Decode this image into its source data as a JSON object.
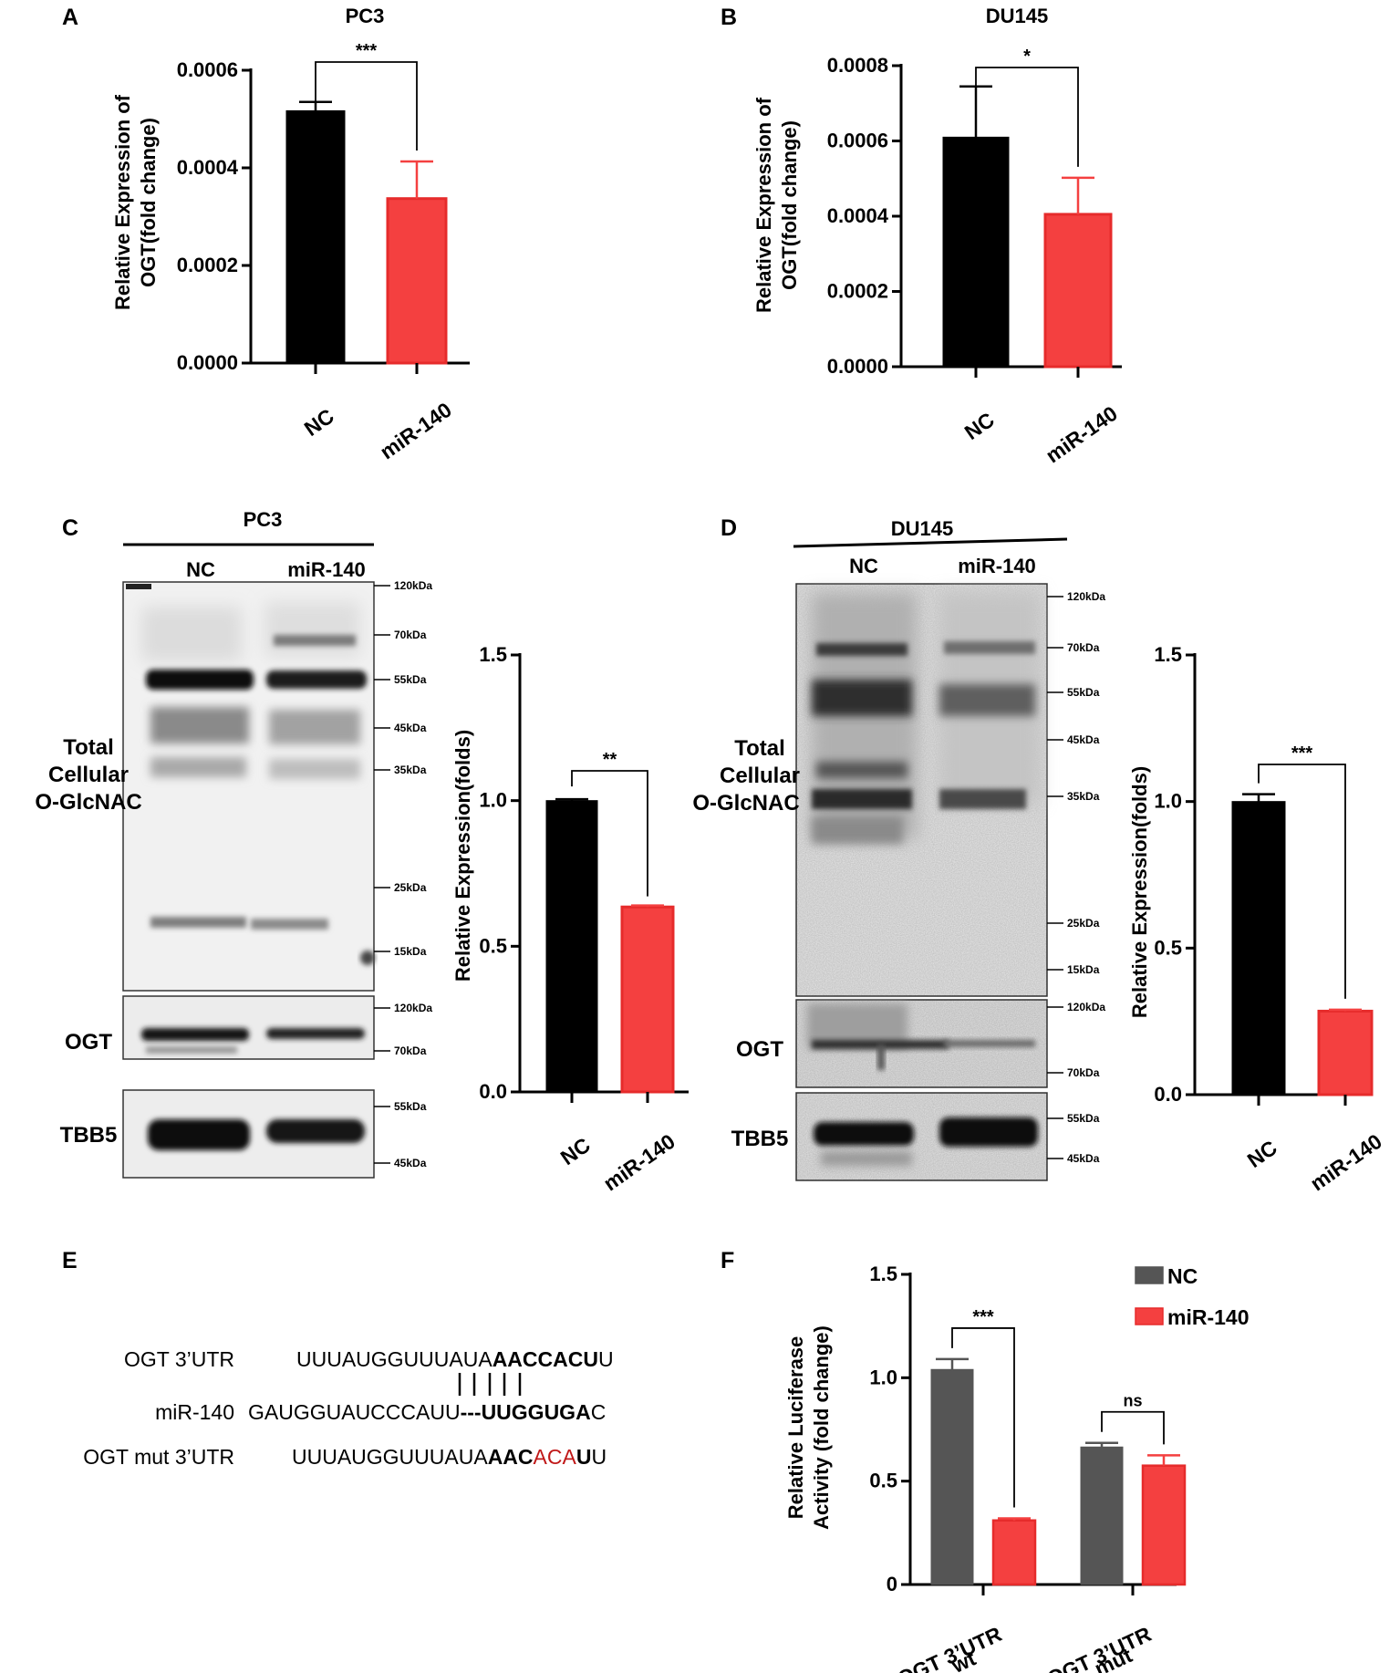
{
  "colors": {
    "nc": "#000000",
    "mir": "#f44040",
    "mir_stroke": "#e62b2b",
    "nc_dark": "#555555",
    "mut": "#c01818"
  },
  "panel_letters": [
    "A",
    "B",
    "C",
    "D",
    "E",
    "F"
  ],
  "chart_data": [
    {
      "panel": "A",
      "type": "bar",
      "title": "PC3",
      "ylabel_line1": "Relative Expression of",
      "ylabel_line2": "OGT(fold change)",
      "categories": [
        "NC",
        "miR-140"
      ],
      "values": [
        0.000517,
        0.000337
      ],
      "errors": [
        1.8e-05,
        7.6e-05
      ],
      "yticks": [
        "0.0000",
        "0.0002",
        "0.0004",
        "0.0006"
      ],
      "ylim": [
        0,
        0.0006
      ],
      "significance": "***"
    },
    {
      "panel": "B",
      "type": "bar",
      "title": "DU145",
      "ylabel_line1": "Relative Expression of",
      "ylabel_line2": "OGT(fold change)",
      "categories": [
        "NC",
        "miR-140"
      ],
      "values": [
        0.00061,
        0.000405
      ],
      "errors": [
        0.000135,
        9.7e-05
      ],
      "yticks": [
        "0.0000",
        "0.0002",
        "0.0004",
        "0.0006",
        "0.0008"
      ],
      "ylim": [
        0,
        0.0008
      ],
      "significance": "*"
    },
    {
      "panel": "C",
      "type": "bar",
      "ylabel": "Relative Expression(folds)",
      "categories": [
        "NC",
        "miR-140"
      ],
      "values": [
        1.0,
        0.635
      ],
      "errors": [
        0.005,
        0.005
      ],
      "yticks": [
        "0.0",
        "0.5",
        "1.0",
        "1.5"
      ],
      "ylim": [
        0,
        1.5
      ],
      "significance": "**"
    },
    {
      "panel": "D",
      "type": "bar",
      "ylabel": "Relative Expression(folds)",
      "categories": [
        "NC",
        "miR-140"
      ],
      "values": [
        1.0,
        0.285
      ],
      "errors": [
        0.025,
        0.005
      ],
      "yticks": [
        "0.0",
        "0.5",
        "1.0",
        "1.5"
      ],
      "ylim": [
        0,
        1.5
      ],
      "significance": "***"
    },
    {
      "panel": "F",
      "type": "bar",
      "ylabel_line1": "Relative Luciferase",
      "ylabel_line2": "Activity (fold change)",
      "groups": [
        {
          "line1": "OGT 3’UTR",
          "line2": "wt"
        },
        {
          "line1": "OGT 3’UTR",
          "line2": "mut"
        }
      ],
      "series": [
        {
          "name": "NC",
          "values": [
            1.04,
            0.665
          ],
          "errors": [
            0.05,
            0.02
          ]
        },
        {
          "name": "miR-140",
          "values": [
            0.31,
            0.575
          ],
          "errors": [
            0.01,
            0.05
          ]
        }
      ],
      "yticks": [
        "0",
        "0.5",
        "1.0",
        "1.5"
      ],
      "ylim": [
        0,
        1.5
      ],
      "significance": [
        "***",
        "ns"
      ]
    }
  ],
  "blots": {
    "C": {
      "cell_line": "PC3",
      "lanes": [
        "NC",
        "miR-140"
      ],
      "label_line1": "Total",
      "label_line2": "Cellular",
      "label_line3": "O-GlcNAC",
      "ogt_label": "OGT",
      "tbb5_label": "TBB5",
      "markers_total": [
        "120kDa",
        "70kDa",
        "55kDa",
        "45kDa",
        "35kDa",
        "25kDa",
        "15kDa"
      ],
      "markers_ogt": [
        "120kDa",
        "70kDa"
      ],
      "markers_tbb5": [
        "55kDa",
        "45kDa"
      ]
    },
    "D": {
      "cell_line": "DU145",
      "lanes": [
        "NC",
        "miR-140"
      ],
      "label_line1": "Total",
      "label_line2": "Cellular",
      "label_line3": "O-GlcNAC",
      "ogt_label": "OGT",
      "tbb5_label": "TBB5",
      "markers_total": [
        "120kDa",
        "70kDa",
        "55kDa",
        "45kDa",
        "35kDa",
        "25kDa",
        "15kDa"
      ],
      "markers_ogt": [
        "120kDa",
        "70kDa"
      ],
      "markers_tbb5": [
        "55kDa",
        "45kDa"
      ]
    }
  },
  "sequences": {
    "ogt_label": "OGT 3’UTR",
    "ogt_plain": "UUUAUGGUUUAUA",
    "ogt_bold": "AACCACU",
    "ogt_end": "U",
    "mir_label": "miR-140",
    "mir_plain": "GAUGGUAUCCCAUU",
    "mir_dash": "---",
    "mir_bold": "UUGGUGA",
    "mir_end": "C",
    "mut_label": "OGT mut 3’UTR",
    "mut_plain": "UUUAUGGUUUAUA",
    "mut_bold1": "AAC",
    "mut_red": "ACA",
    "mut_bold2": "U",
    "mut_end": "U"
  }
}
